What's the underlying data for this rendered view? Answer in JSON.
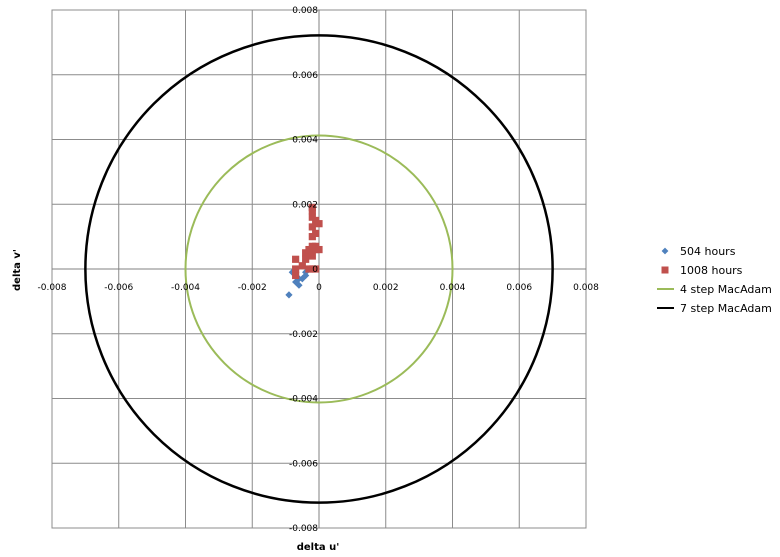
{
  "chart_data": {
    "type": "scatter",
    "title": "",
    "xlabel": "delta u'",
    "ylabel": "delta v'",
    "xlim": [
      -0.008,
      0.008
    ],
    "ylim": [
      -0.008,
      0.008
    ],
    "x_ticks": [
      "-0.008",
      "-0.006",
      "-0.004",
      "-0.002",
      "0",
      "0.002",
      "0.004",
      "0.006",
      "0.008"
    ],
    "y_ticks": [
      "0.008",
      "0.006",
      "0.004",
      "0.002",
      "0",
      "-0.002",
      "-0.004",
      "-0.006",
      "-0.008"
    ],
    "grid": true,
    "legend_position": "right",
    "series": [
      {
        "name": "504 hours",
        "marker": "diamond",
        "color": "#4f81bd",
        "points": [
          [
            -0.0009,
            -0.0008
          ],
          [
            -0.0008,
            -0.0001
          ],
          [
            -0.0007,
            -0.0002
          ],
          [
            -0.0007,
            -0.0004
          ],
          [
            -0.0006,
            -0.0003
          ],
          [
            -0.0006,
            -0.0005
          ],
          [
            -0.0005,
            -0.0003
          ],
          [
            -0.0004,
            -0.0002
          ],
          [
            -0.0004,
            -0.0001
          ]
        ]
      },
      {
        "name": "1008 hours",
        "marker": "square",
        "color": "#c0504d",
        "points": [
          [
            -0.0007,
            -0.0002
          ],
          [
            -0.0007,
            0.0
          ],
          [
            -0.0007,
            0.0003
          ],
          [
            -0.0005,
            0.0001
          ],
          [
            -0.0004,
            0.0005
          ],
          [
            -0.0004,
            0.0003
          ],
          [
            -0.0003,
            0.0006
          ],
          [
            -0.0002,
            0.0007
          ],
          [
            -0.0002,
            0.0004
          ],
          [
            -0.0002,
            0.0
          ],
          [
            -0.0001,
            0.0007
          ],
          [
            -0.0001,
            0.0
          ],
          [
            -0.0001,
            0.0006
          ],
          [
            0.0,
            0.0006
          ],
          [
            -0.0003,
            0.0
          ],
          [
            -0.0002,
            0.001
          ],
          [
            -0.0001,
            0.0011
          ],
          [
            -0.0002,
            0.0013
          ],
          [
            -0.0001,
            0.0015
          ],
          [
            0.0,
            0.0014
          ],
          [
            -0.0002,
            0.0016
          ],
          [
            -0.0002,
            0.0018
          ],
          [
            -0.0002,
            0.0019
          ]
        ]
      },
      {
        "name": "4 step MacAdam",
        "shape": "circle",
        "radius": 0.004,
        "color": "#9bbb59"
      },
      {
        "name": "7 step MacAdam",
        "shape": "circle",
        "radius": 0.007,
        "color": "#000000"
      }
    ]
  }
}
